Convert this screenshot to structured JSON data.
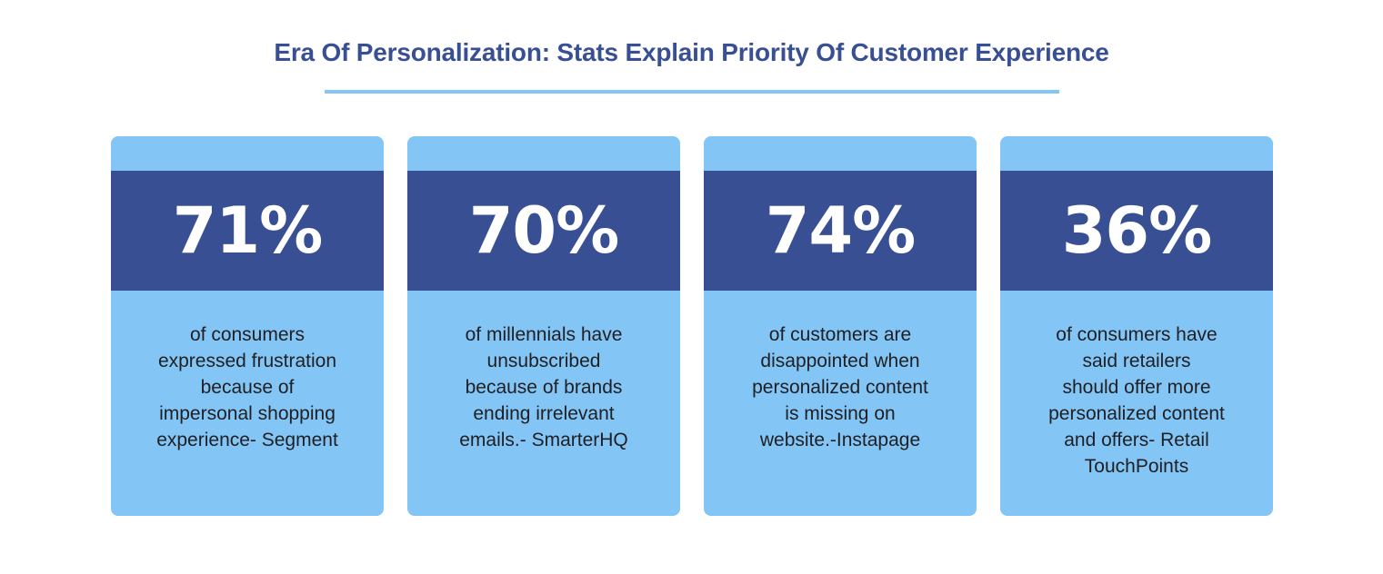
{
  "header": {
    "title": "Era Of Personalization: Stats Explain Priority Of Customer Experience"
  },
  "colors": {
    "title": "#384f94",
    "card_light": "#83c5f4",
    "card_band": "#384f94",
    "underline": "#83c5f4",
    "text": "#1f1f24"
  },
  "cards": [
    {
      "percent": "71%",
      "lines": [
        "of consumers",
        "expressed frustration",
        "because of",
        "impersonal shopping",
        "experience- Segment"
      ]
    },
    {
      "percent": "70%",
      "lines": [
        "of millennials have",
        "unsubscribed",
        "because of brands",
        "ending irrelevant",
        "emails.- SmarterHQ"
      ]
    },
    {
      "percent": "74%",
      "lines": [
        "of customers are",
        "disappointed when",
        "personalized content",
        "is missing on",
        "website.-Instapage"
      ]
    },
    {
      "percent": "36%",
      "lines": [
        "of consumers have",
        "said retailers",
        "should offer more",
        "personalized content",
        "and offers- Retail",
        "TouchPoints"
      ]
    }
  ]
}
